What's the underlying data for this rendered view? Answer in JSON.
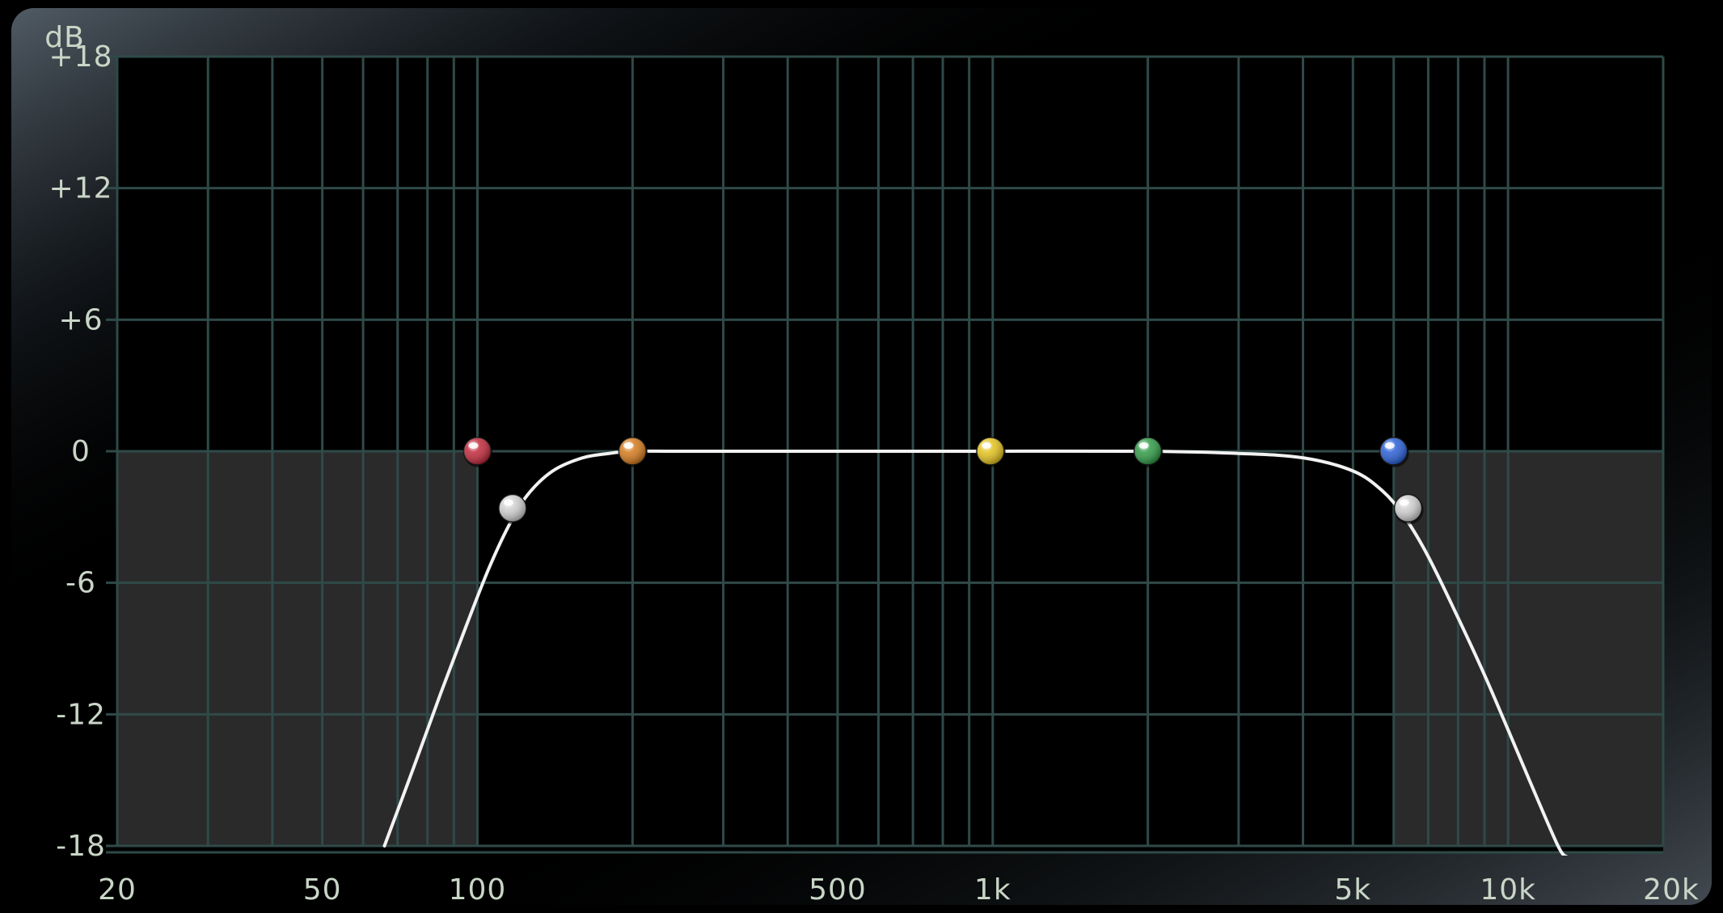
{
  "window": {
    "title": "",
    "background": "#000000",
    "bezel_color": "#3a4650"
  },
  "eq_graph": {
    "y_unit_label": "dB",
    "grid_color": "#2f4a48",
    "label_color": "#c9d6c7",
    "cut_region_color": "#2a2a2a",
    "curve_color": "#f2f2f2",
    "cut_regions": [
      {
        "name": "low-cut-region",
        "x_from": 20,
        "x_to": 100,
        "y_from": -18,
        "y_to": 0
      },
      {
        "name": "high-cut-region",
        "x_from": 6000,
        "x_to": 20000,
        "y_from": -18,
        "y_to": 0
      }
    ]
  },
  "chart_data": {
    "type": "line",
    "xlabel": "",
    "ylabel": "dB",
    "x_scale": "log",
    "xlim": [
      20,
      20000
    ],
    "ylim": [
      -18,
      18
    ],
    "grid": true,
    "x_ticks": [
      {
        "value": 20,
        "label": "20"
      },
      {
        "value": 50,
        "label": "50"
      },
      {
        "value": 100,
        "label": "100"
      },
      {
        "value": 500,
        "label": "500"
      },
      {
        "value": 1000,
        "label": "1k"
      },
      {
        "value": 5000,
        "label": "5k"
      },
      {
        "value": 10000,
        "label": "10k"
      },
      {
        "value": 20000,
        "label": "20k"
      }
    ],
    "y_ticks": [
      {
        "value": 18,
        "label": "+18"
      },
      {
        "value": 12,
        "label": "+12"
      },
      {
        "value": 6,
        "label": "+6"
      },
      {
        "value": 0,
        "label": "0"
      },
      {
        "value": -6,
        "label": "-6"
      },
      {
        "value": -12,
        "label": "-12"
      },
      {
        "value": -18,
        "label": "-18"
      }
    ],
    "series": [
      {
        "color": "#f2f2f2",
        "x": [
          66,
          75,
          85,
          95,
          105,
          115,
          125,
          140,
          160,
          180,
          200,
          250,
          500,
          1000,
          2000,
          3000,
          4000,
          5000,
          5700,
          6300,
          7000,
          8000,
          9000,
          10000,
          11000,
          12500,
          13000
        ],
        "y": [
          -18,
          -14.5,
          -11,
          -8,
          -5.4,
          -3.4,
          -2.0,
          -0.9,
          -0.3,
          -0.1,
          0,
          0,
          0,
          0,
          0,
          -0.1,
          -0.3,
          -0.9,
          -1.8,
          -3.0,
          -4.8,
          -7.6,
          -10.2,
          -12.7,
          -15.0,
          -18,
          -18.5
        ]
      }
    ],
    "band_handles": [
      {
        "name": "band1-red",
        "x": 100,
        "y": 0,
        "color": "#c0283a"
      },
      {
        "name": "low-cut-white",
        "x": 117,
        "y": -2.6,
        "color": "#cfcfcf"
      },
      {
        "name": "band2-orange",
        "x": 200,
        "y": 0,
        "color": "#d47a1c"
      },
      {
        "name": "band3-yellow",
        "x": 990,
        "y": 0,
        "color": "#e3c21d"
      },
      {
        "name": "band4-green",
        "x": 2000,
        "y": 0,
        "color": "#2f9a45"
      },
      {
        "name": "band5-blue",
        "x": 6000,
        "y": 0,
        "color": "#2a5fd6"
      },
      {
        "name": "high-cut-white",
        "x": 6400,
        "y": -2.6,
        "color": "#cfcfcf"
      }
    ]
  }
}
